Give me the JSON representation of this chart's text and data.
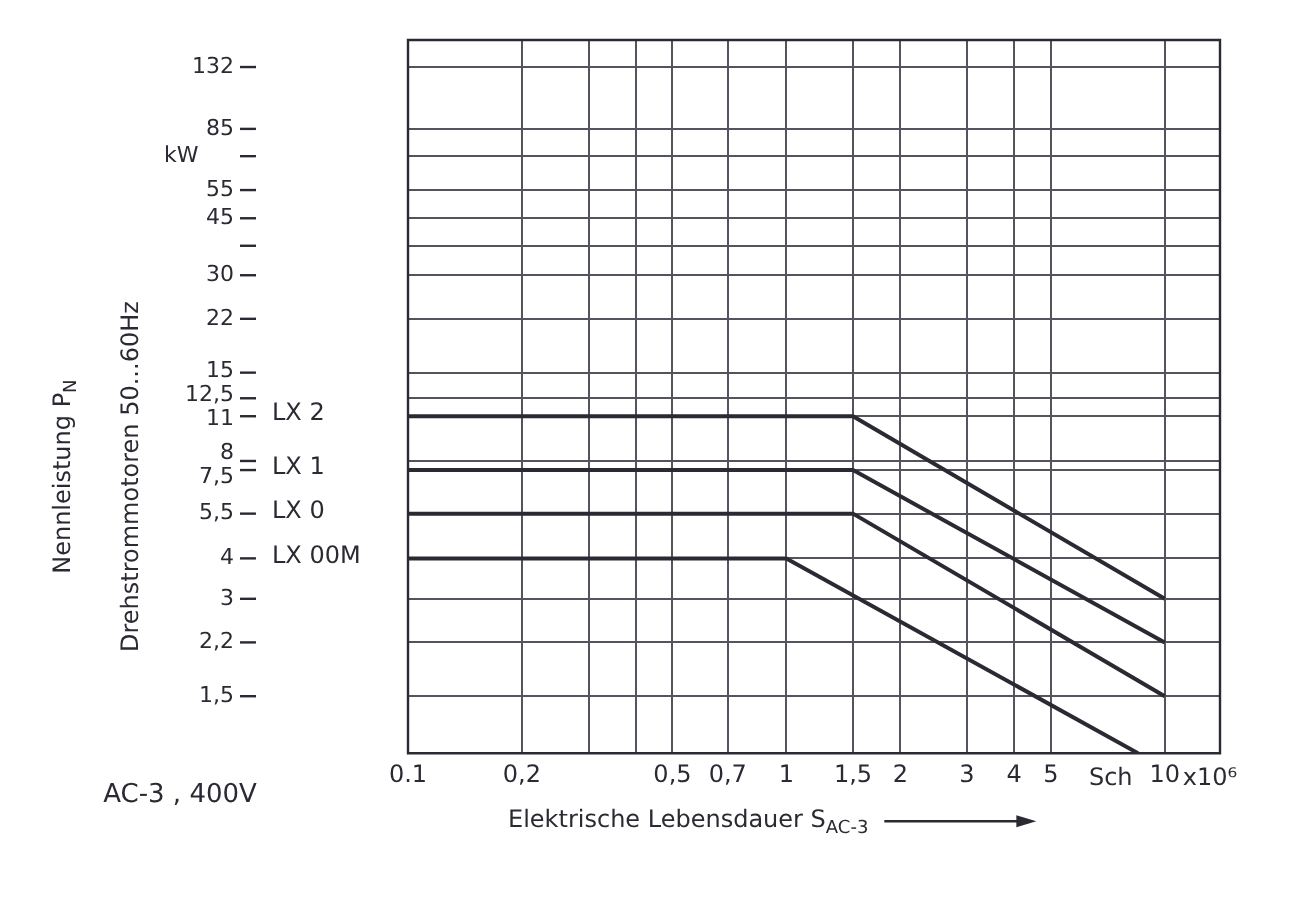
{
  "chart_data": {
    "type": "line",
    "ylabel": "Nennleistung P$_{N}$",
    "xlabel": "Elektrische Lebensdauer S$_{AC-3}$",
    "annotations": [
      "Drehstrommotoren 50...60Hz",
      "kW",
      "Sch",
      "AC-3 , 400V",
      "x10⁶"
    ],
    "series": [
      {
        "name": "LX 2",
        "color": "#2b2a33",
        "x": [
          0.1,
          1.5,
          10
        ],
        "values": [
          11,
          11,
          3
        ]
      },
      {
        "name": "LX 1",
        "color": "#2b2a33",
        "x": [
          0.1,
          1.5,
          10
        ],
        "values": [
          7.5,
          7.5,
          2.2
        ]
      },
      {
        "name": "LX 0",
        "color": "#2b2a33",
        "x": [
          0.1,
          1.5,
          10
        ],
        "values": [
          5.5,
          5.5,
          1.5
        ]
      },
      {
        "name": "LX 00M",
        "color": "#2b2a33",
        "x": [
          0.1,
          1,
          8.5
        ],
        "values": [
          4,
          4,
          1
        ]
      }
    ],
    "log": "xy",
    "xlim": [
      0.1,
      14
    ],
    "ylim": [
      1,
      160
    ],
    "xticks": [
      0.1,
      {
        "value": 0.2,
        "label": "0,2"
      },
      {
        "value": 0.3,
        "label": null
      },
      {
        "value": 0.4,
        "label": null
      },
      {
        "value": 0.5,
        "label": "0,5"
      },
      {
        "value": 0.7,
        "label": "0,7"
      },
      1,
      {
        "value": 1.5,
        "label": "1,5"
      },
      2,
      3,
      4,
      5,
      10
    ],
    "yticks": [
      {
        "value": 1.5,
        "label": "1,5"
      },
      {
        "value": 2.2,
        "label": "2,2"
      },
      3,
      4,
      {
        "value": 5.5,
        "label": "5,5"
      },
      {
        "value": 7.5,
        "label": "7,5"
      },
      8,
      11,
      {
        "value": 12.5,
        "label": "12,5"
      },
      15,
      22,
      30,
      {
        "value": 37,
        "label": null
      },
      45,
      55,
      {
        "value": 70,
        "label": null
      },
      85,
      132
    ],
    "grid": true,
    "legend": "left",
    "marker": "none",
    "line_style": "solid"
  }
}
